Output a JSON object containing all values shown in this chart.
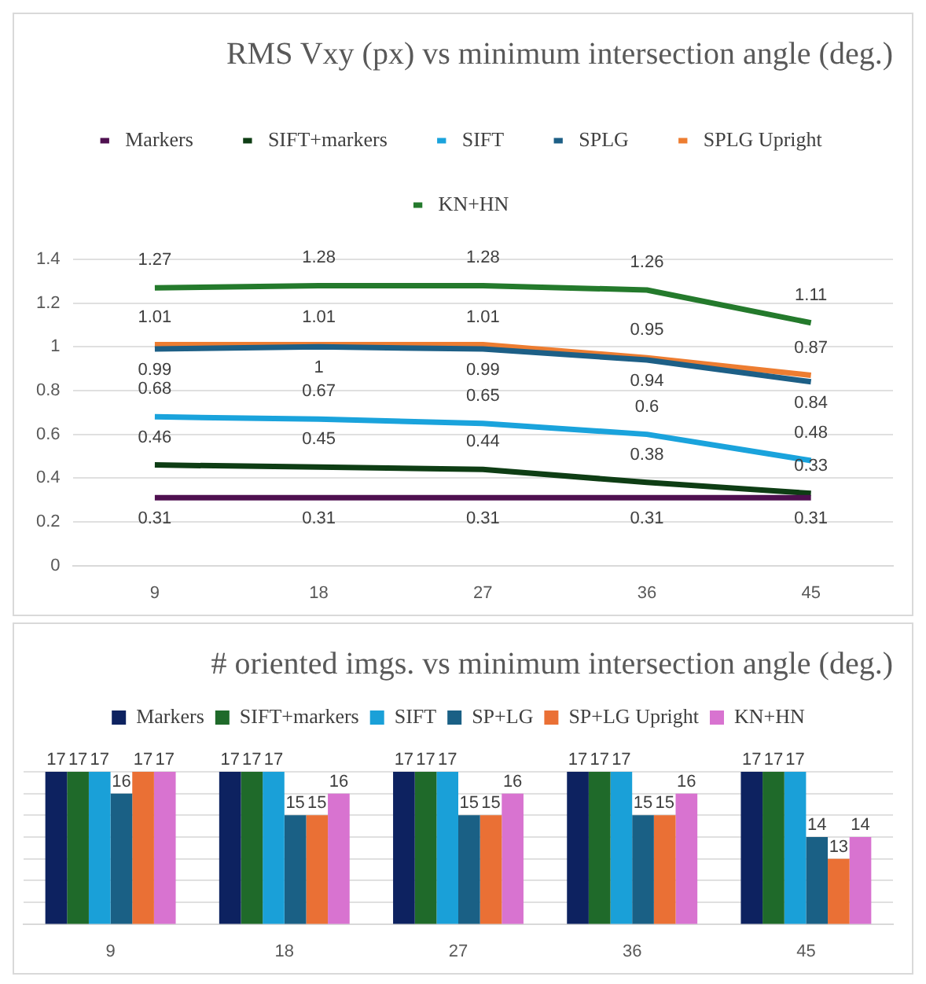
{
  "chart_data": [
    {
      "type": "line",
      "title": "RMS Vxy (px) vs minimum intersection angle (deg.)",
      "categories": [
        "9",
        "18",
        "27",
        "36",
        "45"
      ],
      "series": [
        {
          "name": "Markers",
          "color": "#4f1050",
          "values": [
            0.31,
            0.31,
            0.31,
            0.31,
            0.31
          ]
        },
        {
          "name": "SIFT+markers",
          "color": "#0e3d14",
          "values": [
            0.46,
            0.45,
            0.44,
            0.38,
            0.33
          ]
        },
        {
          "name": "SIFT",
          "color": "#1aa3dc",
          "values": [
            0.68,
            0.67,
            0.65,
            0.6,
            0.48
          ]
        },
        {
          "name": "SPLG",
          "color": "#1d5f86",
          "values": [
            0.99,
            1,
            0.99,
            0.94,
            0.84
          ]
        },
        {
          "name": "SPLG Upright",
          "color": "#ed7d31",
          "values": [
            1.01,
            1.01,
            1.01,
            0.95,
            0.87
          ]
        },
        {
          "name": "KN+HN",
          "color": "#247a2c",
          "values": [
            1.27,
            1.28,
            1.28,
            1.26,
            1.11
          ]
        }
      ],
      "ylim": [
        0,
        1.4
      ],
      "yticks": [
        0,
        0.2,
        0.4,
        0.6,
        0.8,
        1,
        1.2,
        1.4
      ],
      "grid": "y",
      "legend": "top",
      "data_labels": true,
      "marker": "none"
    },
    {
      "type": "bar",
      "title": "# oriented imgs. vs minimum intersection angle (deg.)",
      "categories": [
        "9",
        "18",
        "27",
        "36",
        "45"
      ],
      "series": [
        {
          "name": "Markers",
          "color": "#0d2260",
          "values": [
            17,
            17,
            17,
            17,
            17
          ]
        },
        {
          "name": "SIFT+markers",
          "color": "#1f6a2a",
          "values": [
            17,
            17,
            17,
            17,
            17
          ]
        },
        {
          "name": "SIFT",
          "color": "#1aa0d8",
          "values": [
            17,
            17,
            17,
            17,
            17
          ]
        },
        {
          "name": "SP+LG",
          "color": "#1a6085",
          "values": [
            16,
            15,
            15,
            15,
            14
          ]
        },
        {
          "name": "SP+LG Upright",
          "color": "#ea7035",
          "values": [
            17,
            15,
            15,
            15,
            13
          ]
        },
        {
          "name": "KN+HN",
          "color": "#d873d0",
          "values": [
            17,
            16,
            16,
            16,
            14
          ]
        }
      ],
      "ylim": [
        10,
        17
      ],
      "yticks": [
        {
          "value": 10,
          "label": null
        },
        {
          "value": 11,
          "label": null
        },
        {
          "value": 12,
          "label": null
        },
        {
          "value": 13,
          "label": null
        },
        {
          "value": 14,
          "label": null
        },
        {
          "value": 15,
          "label": null
        },
        {
          "value": 16,
          "label": null
        },
        {
          "value": 17,
          "label": null
        }
      ],
      "tick_labels": "x",
      "grid": "y",
      "legend": "top",
      "data_labels": true
    }
  ]
}
